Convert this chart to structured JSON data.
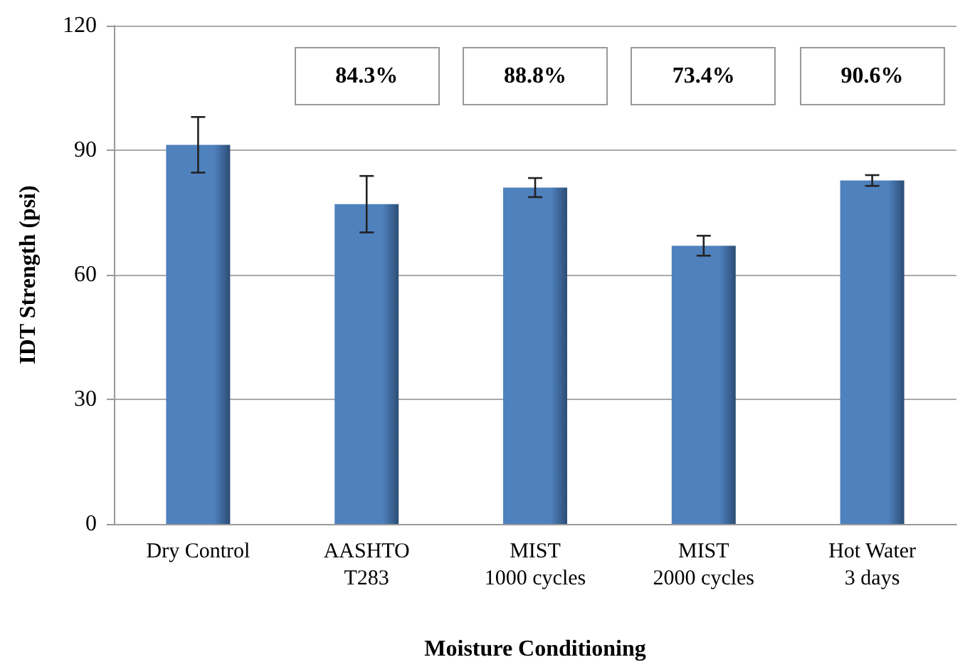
{
  "chart_data": {
    "type": "bar",
    "xlabel": "Moisture Conditioning",
    "ylabel": "IDT Strength (psi)",
    "categories": [
      "Dry Control",
      "AASHTO\nT283",
      "MIST\n1000 cycles",
      "MIST\n2000 cycles",
      "Hot Water\n3 days"
    ],
    "values": [
      91.3,
      77.0,
      81.0,
      67.0,
      82.7
    ],
    "errors": [
      6.7,
      6.8,
      2.3,
      2.4,
      1.3
    ],
    "color": "#4f81bd",
    "ylim": [
      0,
      120
    ],
    "yticks": [
      0,
      30,
      60,
      90,
      120
    ],
    "grid": "y",
    "annotations": [
      "84.3%",
      "88.8%",
      "73.4%",
      "90.6%"
    ]
  }
}
